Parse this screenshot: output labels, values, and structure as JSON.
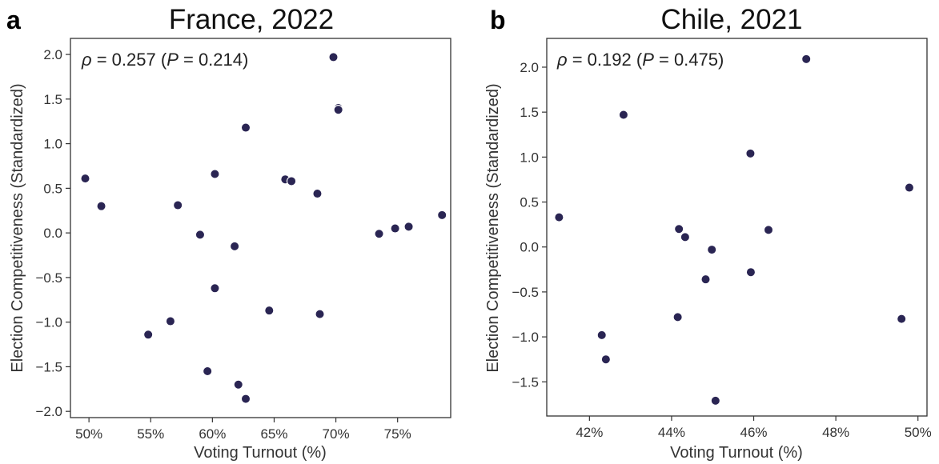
{
  "chart_data": [
    {
      "type": "scatter",
      "panel_letter": "a",
      "title": "France, 2022",
      "xlabel": "Voting Turnout (%)",
      "ylabel": "Election Competitiveness (Standardized)",
      "xlim": [
        48.5,
        79.3
      ],
      "ylim": [
        -2.07,
        2.18
      ],
      "xticks": [
        50,
        55,
        60,
        65,
        70,
        75
      ],
      "xtick_labels": [
        "50%",
        "55%",
        "60%",
        "65%",
        "70%",
        "75%"
      ],
      "yticks": [
        2.0,
        1.5,
        1.0,
        0.5,
        0.0,
        -0.5,
        -1.0,
        -1.5,
        -2.0
      ],
      "ytick_labels": [
        "2.0",
        "1.5",
        "1.0",
        "0.5",
        "0.0",
        "−0.5",
        "−1.0",
        "−1.5",
        "−2.0"
      ],
      "annotation": {
        "rho_symbol": "ρ",
        "rho_text": " = 0.257 (",
        "p_symbol": "P",
        "p_text": " = 0.214)"
      },
      "color": "#2a2553",
      "grid": false,
      "points": [
        {
          "x": 49.7,
          "y": 0.61
        },
        {
          "x": 51.0,
          "y": 0.3
        },
        {
          "x": 54.8,
          "y": -1.14
        },
        {
          "x": 56.6,
          "y": -0.99
        },
        {
          "x": 57.2,
          "y": 0.31
        },
        {
          "x": 59.0,
          "y": -0.02
        },
        {
          "x": 59.6,
          "y": -1.55
        },
        {
          "x": 60.2,
          "y": 0.66
        },
        {
          "x": 60.2,
          "y": -0.62
        },
        {
          "x": 61.8,
          "y": -0.15
        },
        {
          "x": 62.1,
          "y": -1.7
        },
        {
          "x": 62.7,
          "y": 1.18
        },
        {
          "x": 62.7,
          "y": -1.86
        },
        {
          "x": 64.6,
          "y": -0.87
        },
        {
          "x": 65.9,
          "y": 0.6
        },
        {
          "x": 66.4,
          "y": 0.58
        },
        {
          "x": 68.5,
          "y": 0.44
        },
        {
          "x": 68.7,
          "y": -0.91
        },
        {
          "x": 69.8,
          "y": 1.97
        },
        {
          "x": 70.2,
          "y": 1.4
        },
        {
          "x": 70.2,
          "y": 1.38
        },
        {
          "x": 73.5,
          "y": -0.01
        },
        {
          "x": 74.8,
          "y": 0.05
        },
        {
          "x": 75.9,
          "y": 0.07
        },
        {
          "x": 78.6,
          "y": 0.2
        }
      ]
    },
    {
      "type": "scatter",
      "panel_letter": "b",
      "title": "Chile, 2021",
      "xlabel": "Voting Turnout (%)",
      "ylabel": "Election Competitiveness (Standardized)",
      "xlim": [
        40.96,
        50.22
      ],
      "ylim": [
        -1.88,
        2.32
      ],
      "xticks": [
        42,
        44,
        46,
        48,
        50
      ],
      "xtick_labels": [
        "42%",
        "44%",
        "46%",
        "48%",
        "50%"
      ],
      "yticks": [
        2.0,
        1.5,
        1.0,
        0.5,
        0.0,
        -0.5,
        -1.0,
        -1.5
      ],
      "ytick_labels": [
        "2.0",
        "1.5",
        "1.0",
        "0.5",
        "0.0",
        "−0.5",
        "−1.0",
        "−1.5"
      ],
      "annotation": {
        "rho_symbol": "ρ",
        "rho_text": " = 0.192 (",
        "p_symbol": "P",
        "p_text": " = 0.475)"
      },
      "color": "#2a2553",
      "grid": false,
      "points": [
        {
          "x": 41.26,
          "y": 0.33
        },
        {
          "x": 42.3,
          "y": -0.98
        },
        {
          "x": 42.4,
          "y": -1.25
        },
        {
          "x": 42.83,
          "y": 1.47
        },
        {
          "x": 44.15,
          "y": -0.78
        },
        {
          "x": 44.18,
          "y": 0.2
        },
        {
          "x": 44.33,
          "y": 0.11
        },
        {
          "x": 44.83,
          "y": -0.36
        },
        {
          "x": 44.98,
          "y": -0.03
        },
        {
          "x": 45.07,
          "y": -1.71
        },
        {
          "x": 45.92,
          "y": 1.04
        },
        {
          "x": 45.93,
          "y": -0.28
        },
        {
          "x": 46.36,
          "y": 0.19
        },
        {
          "x": 47.28,
          "y": 2.09
        },
        {
          "x": 49.6,
          "y": -0.8
        },
        {
          "x": 49.79,
          "y": 0.66
        }
      ]
    }
  ]
}
